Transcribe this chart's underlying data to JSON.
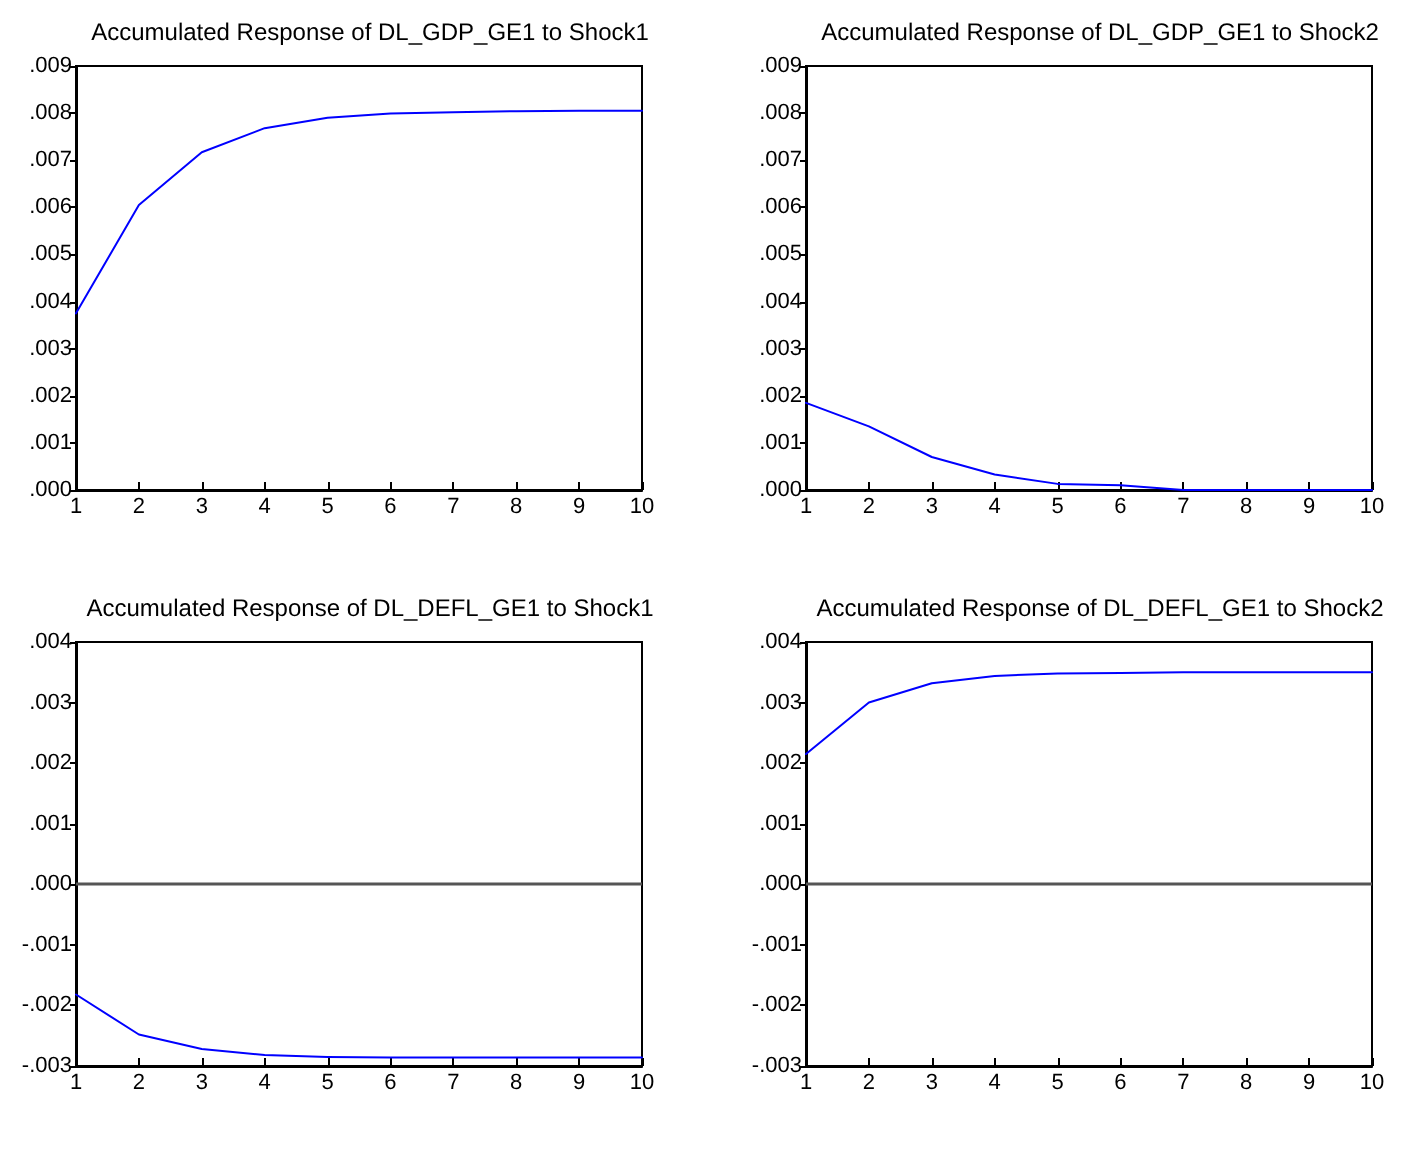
{
  "chart_data": [
    {
      "type": "line",
      "title": "Accumulated Response of DL_GDP_GE1 to Shock1",
      "x": [
        1,
        2,
        3,
        4,
        5,
        6,
        7,
        8,
        9,
        10
      ],
      "series": [
        {
          "color": "#0000ff",
          "values": [
            0.00375,
            0.00605,
            0.00717,
            0.00768,
            0.0079,
            0.00799,
            0.00802,
            0.00804,
            0.00805,
            0.00805
          ]
        }
      ],
      "xlim": [
        1,
        10
      ],
      "xticks": [
        1,
        2,
        3,
        4,
        5,
        6,
        7,
        8,
        9,
        10
      ],
      "ylim": [
        0,
        0.009
      ],
      "yticks": [
        {
          "value": 0,
          "label": ".000"
        },
        {
          "value": 0.001,
          "label": ".001"
        },
        {
          "value": 0.002,
          "label": ".002"
        },
        {
          "value": 0.003,
          "label": ".003"
        },
        {
          "value": 0.004,
          "label": ".004"
        },
        {
          "value": 0.005,
          "label": ".005"
        },
        {
          "value": 0.006,
          "label": ".006"
        },
        {
          "value": 0.007,
          "label": ".007"
        },
        {
          "value": 0.008,
          "label": ".008"
        },
        {
          "value": 0.009,
          "label": ".009"
        }
      ],
      "grid": false,
      "marker": "none",
      "line_style": "solid"
    },
    {
      "type": "line",
      "title": "Accumulated Response of DL_GDP_GE1 to Shock2",
      "x": [
        1,
        2,
        3,
        4,
        5,
        6,
        7,
        8,
        9,
        10
      ],
      "series": [
        {
          "color": "#0000ff",
          "values": [
            0.00185,
            0.00135,
            0.0007,
            0.00033,
            0.00013,
            0.0001,
            0,
            0,
            0,
            0
          ]
        }
      ],
      "xlim": [
        1,
        10
      ],
      "xticks": [
        1,
        2,
        3,
        4,
        5,
        6,
        7,
        8,
        9,
        10
      ],
      "ylim": [
        0,
        0.009
      ],
      "yticks": [
        {
          "value": 0,
          "label": ".000"
        },
        {
          "value": 0.001,
          "label": ".001"
        },
        {
          "value": 0.002,
          "label": ".002"
        },
        {
          "value": 0.003,
          "label": ".003"
        },
        {
          "value": 0.004,
          "label": ".004"
        },
        {
          "value": 0.005,
          "label": ".005"
        },
        {
          "value": 0.006,
          "label": ".006"
        },
        {
          "value": 0.007,
          "label": ".007"
        },
        {
          "value": 0.008,
          "label": ".008"
        },
        {
          "value": 0.009,
          "label": ".009"
        }
      ],
      "grid": false,
      "marker": "none",
      "line_style": "solid"
    },
    {
      "type": "line",
      "title": "Accumulated Response of DL_DEFL_GE1 to Shock1",
      "x": [
        1,
        2,
        3,
        4,
        5,
        6,
        7,
        8,
        9,
        10
      ],
      "series": [
        {
          "color": "#0000ff",
          "values": [
            -0.00182,
            -0.00248,
            -0.00272,
            -0.00282,
            -0.00285,
            -0.00286,
            -0.00286,
            -0.00286,
            -0.00286,
            -0.00286
          ]
        }
      ],
      "xlim": [
        1,
        10
      ],
      "xticks": [
        1,
        2,
        3,
        4,
        5,
        6,
        7,
        8,
        9,
        10
      ],
      "ylim": [
        -0.003,
        0.004
      ],
      "yticks": [
        {
          "value": -0.003,
          "label": "-.003"
        },
        {
          "value": -0.002,
          "label": "-.002"
        },
        {
          "value": -0.001,
          "label": "-.001"
        },
        {
          "value": 0,
          "label": ".000"
        },
        {
          "value": 0.001,
          "label": ".001"
        },
        {
          "value": 0.002,
          "label": ".002"
        },
        {
          "value": 0.003,
          "label": ".003"
        },
        {
          "value": 0.004,
          "label": ".004"
        }
      ],
      "ref_lines": [
        {
          "axis": "y",
          "value": 0,
          "color": "#555555"
        }
      ],
      "grid": false,
      "marker": "none",
      "line_style": "solid"
    },
    {
      "type": "line",
      "title": "Accumulated Response of DL_DEFL_GE1 to Shock2",
      "x": [
        1,
        2,
        3,
        4,
        5,
        6,
        7,
        8,
        9,
        10
      ],
      "series": [
        {
          "color": "#0000ff",
          "values": [
            0.00215,
            0.003,
            0.00332,
            0.00344,
            0.00348,
            0.00349,
            0.0035,
            0.0035,
            0.0035,
            0.0035
          ]
        }
      ],
      "xlim": [
        1,
        10
      ],
      "xticks": [
        1,
        2,
        3,
        4,
        5,
        6,
        7,
        8,
        9,
        10
      ],
      "ylim": [
        -0.003,
        0.004
      ],
      "yticks": [
        {
          "value": -0.003,
          "label": "-.003"
        },
        {
          "value": -0.002,
          "label": "-.002"
        },
        {
          "value": -0.001,
          "label": "-.001"
        },
        {
          "value": 0,
          "label": ".000"
        },
        {
          "value": 0.001,
          "label": ".001"
        },
        {
          "value": 0.002,
          "label": ".002"
        },
        {
          "value": 0.003,
          "label": ".003"
        },
        {
          "value": 0.004,
          "label": ".004"
        }
      ],
      "ref_lines": [
        {
          "axis": "y",
          "value": 0,
          "color": "#555555"
        }
      ],
      "grid": false,
      "marker": "none",
      "line_style": "solid"
    }
  ]
}
